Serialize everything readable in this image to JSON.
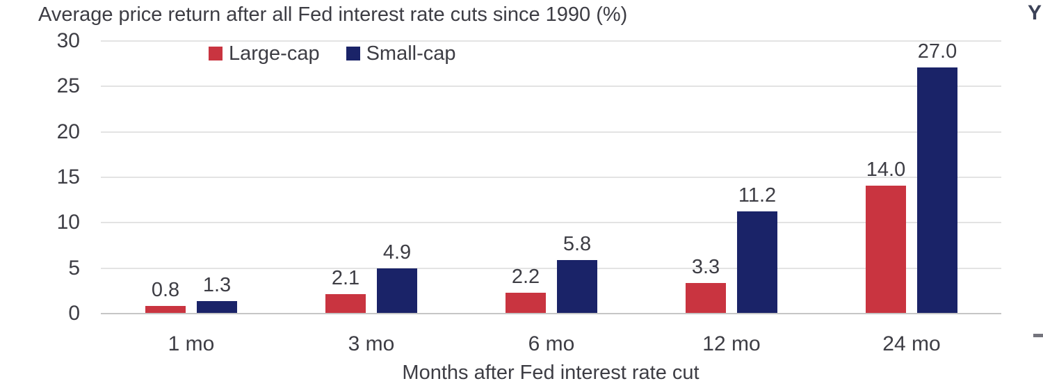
{
  "header": {
    "title": "Average price return after all Fed interest rate cuts since 1990 (%)"
  },
  "clipped": {
    "right_top_text": "Y",
    "right_bottom_mark": "-"
  },
  "legend": {
    "items": [
      {
        "label": "Large-cap",
        "color": "#c93440"
      },
      {
        "label": "Small-cap",
        "color": "#1a2368"
      }
    ]
  },
  "colors": {
    "large_cap": "#c93440",
    "small_cap": "#1a2368",
    "gridline": "#e3e3e3",
    "axis_line": "#c6c6c6",
    "text": "#3d3d44"
  },
  "chart_data": {
    "type": "bar",
    "title": "Average price return after all Fed interest rate cuts since 1990 (%)",
    "categories": [
      "1 mo",
      "3 mo",
      "6 mo",
      "12 mo",
      "24 mo"
    ],
    "series": [
      {
        "name": "Large-cap",
        "color": "#c93440",
        "values": [
          0.8,
          2.1,
          2.2,
          3.3,
          14.0
        ]
      },
      {
        "name": "Small-cap",
        "color": "#1a2368",
        "values": [
          1.3,
          4.9,
          5.8,
          11.2,
          27.0
        ]
      }
    ],
    "data_labels": [
      "0.8",
      "1.3",
      "2.1",
      "4.9",
      "2.2",
      "5.8",
      "3.3",
      "11.2",
      "14.0",
      "27.0"
    ],
    "xlabel": "Months after Fed interest rate cut",
    "ylabel": "",
    "ylim": [
      0,
      30
    ],
    "yticks": [
      0,
      5,
      10,
      15,
      20,
      25,
      30
    ],
    "grid": true,
    "legend_position": "top-center"
  }
}
